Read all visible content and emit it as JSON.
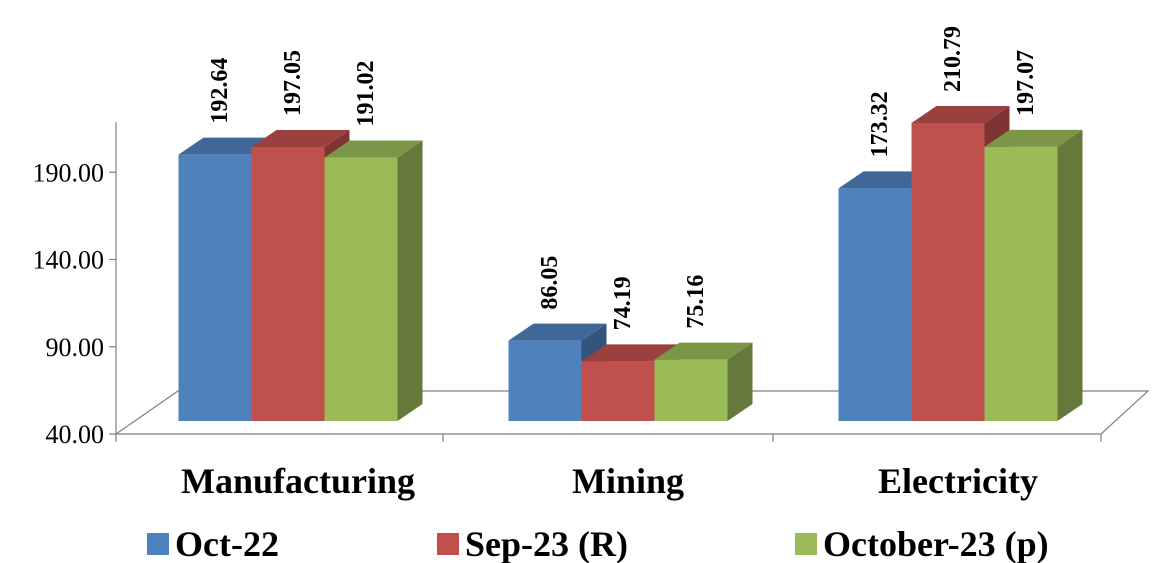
{
  "chart_data": {
    "type": "bar",
    "title": "",
    "xlabel": "",
    "ylabel": "",
    "categories": [
      "Manufacturing",
      "Mining",
      "Electricity"
    ],
    "series": [
      {
        "name": "Oct-22",
        "color": "#4F81BD",
        "values": [
          192.64,
          86.05,
          173.32
        ],
        "labels": [
          "192.64",
          "86.05",
          "173.32"
        ]
      },
      {
        "name": "Sep-23 (R)",
        "color": "#C0504D",
        "values": [
          197.05,
          74.19,
          210.79
        ],
        "labels": [
          "197.05",
          "74.19",
          "210.79"
        ]
      },
      {
        "name": "October-23 (p)",
        "color": "#9BBB59",
        "values": [
          191.02,
          75.16,
          197.07
        ],
        "labels": [
          "191.02",
          "75.16",
          "197.07"
        ]
      }
    ],
    "yticks": [
      "40.00",
      "90.00",
      "140.00",
      "190.00"
    ],
    "ylim": [
      40,
      240
    ],
    "three_d": true,
    "grid": false,
    "legend_position": "bottom"
  }
}
